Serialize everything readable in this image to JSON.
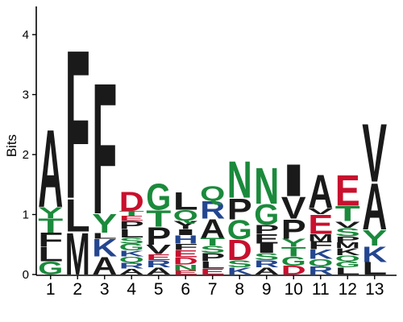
{
  "chart_data": {
    "type": "sequence-logo",
    "ylabel": "Bits",
    "ylim": [
      0,
      4.5
    ],
    "yticks": [
      0,
      1,
      2,
      3,
      4
    ],
    "colors": {
      "black": "#1a1a1a",
      "green": "#1b8a3c",
      "blue": "#23468f",
      "red": "#c8102e"
    },
    "positions": [
      {
        "label": "1",
        "letters": [
          {
            "char": "G",
            "bits": 0.22,
            "color": "green"
          },
          {
            "char": "L",
            "bits": 0.24,
            "color": "black"
          },
          {
            "char": "F",
            "bits": 0.24,
            "color": "black"
          },
          {
            "char": "T",
            "bits": 0.24,
            "color": "green"
          },
          {
            "char": "Y",
            "bits": 0.19,
            "color": "green"
          },
          {
            "char": "A",
            "bits": 1.33,
            "color": "black"
          }
        ]
      },
      {
        "label": "2",
        "letters": [
          {
            "char": "M",
            "bits": 0.72,
            "color": "black"
          },
          {
            "char": "L",
            "bits": 0.56,
            "color": "black"
          },
          {
            "char": "F",
            "bits": 2.55,
            "color": "black"
          }
        ]
      },
      {
        "label": "3",
        "letters": [
          {
            "char": "A",
            "bits": 0.3,
            "color": "black"
          },
          {
            "char": "K",
            "bits": 0.3,
            "color": "blue"
          },
          {
            "char": "L",
            "bits": 0.1,
            "color": "black"
          },
          {
            "char": "Y",
            "bits": 0.32,
            "color": "green"
          },
          {
            "char": "F",
            "bits": 2.25,
            "color": "black"
          }
        ]
      },
      {
        "label": "4",
        "letters": [
          {
            "char": "A",
            "bits": 0.1,
            "color": "black"
          },
          {
            "char": "R",
            "bits": 0.1,
            "color": "blue"
          },
          {
            "char": "Q",
            "bits": 0.1,
            "color": "green"
          },
          {
            "char": "K",
            "bits": 0.1,
            "color": "blue"
          },
          {
            "char": "G",
            "bits": 0.12,
            "color": "green"
          },
          {
            "char": "S",
            "bits": 0.1,
            "color": "green"
          },
          {
            "char": "L",
            "bits": 0.14,
            "color": "black"
          },
          {
            "char": "P",
            "bits": 0.14,
            "color": "black"
          },
          {
            "char": "E",
            "bits": 0.08,
            "color": "red"
          },
          {
            "char": "T",
            "bits": 0.08,
            "color": "green"
          },
          {
            "char": "D",
            "bits": 0.33,
            "color": "red"
          }
        ]
      },
      {
        "label": "5",
        "letters": [
          {
            "char": "A",
            "bits": 0.12,
            "color": "black"
          },
          {
            "char": "R",
            "bits": 0.12,
            "color": "blue"
          },
          {
            "char": "E",
            "bits": 0.1,
            "color": "red"
          },
          {
            "char": "V",
            "bits": 0.16,
            "color": "black"
          },
          {
            "char": "P",
            "bits": 0.3,
            "color": "black"
          },
          {
            "char": "T",
            "bits": 0.28,
            "color": "green"
          },
          {
            "char": "G",
            "bits": 0.45,
            "color": "green"
          }
        ]
      },
      {
        "label": "6",
        "letters": [
          {
            "char": "E",
            "bits": 0.07,
            "color": "red"
          },
          {
            "char": "N",
            "bits": 0.1,
            "color": "green"
          },
          {
            "char": "D",
            "bits": 0.12,
            "color": "red"
          },
          {
            "char": "E",
            "bits": 0.12,
            "color": "red"
          },
          {
            "char": "F",
            "bits": 0.11,
            "color": "black"
          },
          {
            "char": "H",
            "bits": 0.14,
            "color": "blue"
          },
          {
            "char": "I",
            "bits": 0.1,
            "color": "black"
          },
          {
            "char": "Y",
            "bits": 0.14,
            "color": "black"
          },
          {
            "char": "Q",
            "bits": 0.18,
            "color": "green"
          },
          {
            "char": "L",
            "bits": 0.3,
            "color": "black"
          }
        ]
      },
      {
        "label": "7",
        "letters": [
          {
            "char": "E",
            "bits": 0.1,
            "color": "red"
          },
          {
            "char": "L",
            "bits": 0.12,
            "color": "black"
          },
          {
            "char": "P",
            "bits": 0.14,
            "color": "black"
          },
          {
            "char": "S",
            "bits": 0.12,
            "color": "green"
          },
          {
            "char": "T",
            "bits": 0.13,
            "color": "green"
          },
          {
            "char": "A",
            "bits": 0.32,
            "color": "black"
          },
          {
            "char": "R",
            "bits": 0.3,
            "color": "blue"
          },
          {
            "char": "Q",
            "bits": 0.25,
            "color": "green"
          }
        ]
      },
      {
        "label": "8",
        "letters": [
          {
            "char": "K",
            "bits": 0.12,
            "color": "blue"
          },
          {
            "char": "S",
            "bits": 0.12,
            "color": "green"
          },
          {
            "char": "D",
            "bits": 0.35,
            "color": "red"
          },
          {
            "char": "G",
            "bits": 0.33,
            "color": "green"
          },
          {
            "char": "P",
            "bits": 0.36,
            "color": "black"
          },
          {
            "char": "N",
            "bits": 0.63,
            "color": "green"
          }
        ]
      },
      {
        "label": "9",
        "letters": [
          {
            "char": "A",
            "bits": 0.12,
            "color": "black"
          },
          {
            "char": "R",
            "bits": 0.12,
            "color": "blue"
          },
          {
            "char": "S",
            "bits": 0.12,
            "color": "green"
          },
          {
            "char": "I",
            "bits": 0.16,
            "color": "black"
          },
          {
            "char": "E",
            "bits": 0.16,
            "color": "black"
          },
          {
            "char": "P",
            "bits": 0.15,
            "color": "black"
          },
          {
            "char": "G",
            "bits": 0.35,
            "color": "green"
          },
          {
            "char": "N",
            "bits": 0.62,
            "color": "green"
          }
        ]
      },
      {
        "label": "10",
        "letters": [
          {
            "char": "D",
            "bits": 0.15,
            "color": "red"
          },
          {
            "char": "G",
            "bits": 0.15,
            "color": "green"
          },
          {
            "char": "T",
            "bits": 0.16,
            "color": "green"
          },
          {
            "char": "Y",
            "bits": 0.14,
            "color": "green"
          },
          {
            "char": "P",
            "bits": 0.33,
            "color": "black"
          },
          {
            "char": "V",
            "bits": 0.38,
            "color": "black"
          },
          {
            "char": "I",
            "bits": 0.55,
            "color": "black"
          }
        ]
      },
      {
        "label": "11",
        "letters": [
          {
            "char": "R",
            "bits": 0.14,
            "color": "blue"
          },
          {
            "char": "Q",
            "bits": 0.12,
            "color": "green"
          },
          {
            "char": "K",
            "bits": 0.16,
            "color": "blue"
          },
          {
            "char": "F",
            "bits": 0.14,
            "color": "black"
          },
          {
            "char": "M",
            "bits": 0.12,
            "color": "black"
          },
          {
            "char": "E",
            "bits": 0.33,
            "color": "red"
          },
          {
            "char": "V",
            "bits": 0.1,
            "color": "black"
          },
          {
            "char": "A",
            "bits": 0.57,
            "color": "black"
          }
        ]
      },
      {
        "label": "12",
        "letters": [
          {
            "char": "L",
            "bits": 0.12,
            "color": "black"
          },
          {
            "char": "G",
            "bits": 0.1,
            "color": "green"
          },
          {
            "char": "Q",
            "bits": 0.1,
            "color": "green"
          },
          {
            "char": "K",
            "bits": 0.12,
            "color": "black"
          },
          {
            "char": "M",
            "bits": 0.1,
            "color": "black"
          },
          {
            "char": "P",
            "bits": 0.1,
            "color": "black"
          },
          {
            "char": "S",
            "bits": 0.14,
            "color": "green"
          },
          {
            "char": "V",
            "bits": 0.11,
            "color": "black"
          },
          {
            "char": "T",
            "bits": 0.26,
            "color": "green"
          },
          {
            "char": "E",
            "bits": 0.53,
            "color": "red"
          }
        ]
      },
      {
        "label": "13",
        "letters": [
          {
            "char": "L",
            "bits": 0.21,
            "color": "black"
          },
          {
            "char": "K",
            "bits": 0.27,
            "color": "blue"
          },
          {
            "char": "Y",
            "bits": 0.27,
            "color": "green"
          },
          {
            "char": "A",
            "bits": 0.8,
            "color": "black"
          },
          {
            "char": "V",
            "bits": 1.0,
            "color": "black"
          }
        ]
      }
    ]
  }
}
